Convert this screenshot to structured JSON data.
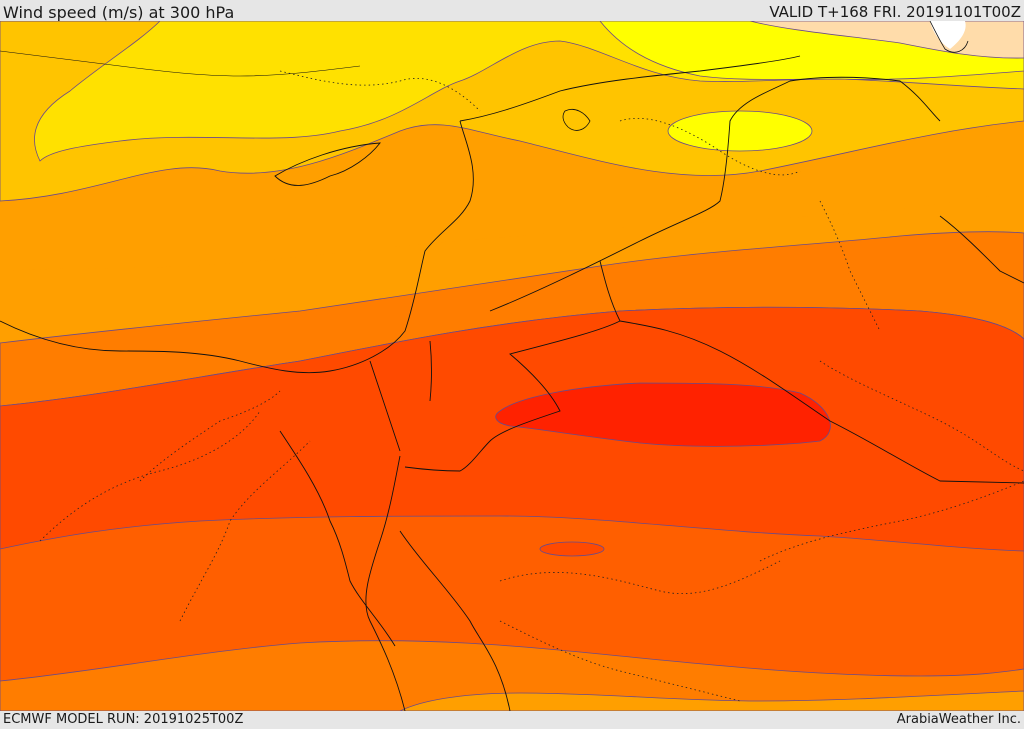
{
  "header": {
    "title": "Wind speed (m/s) at 300 hPa",
    "valid": "VALID T+168 FRI. 20191101T00Z"
  },
  "footer": {
    "model_run": "ECMWF MODEL RUN: 20191025T00Z",
    "credit": "ArabiaWeather Inc."
  },
  "map": {
    "variable": "wind speed",
    "level_hpa": 300,
    "colors": {
      "band_1": "#ffff00",
      "band_2": "#ffe100",
      "band_3": "#ffc400",
      "band_4": "#ff9f00",
      "band_5": "#ff7d00",
      "band_6": "#ff5f00",
      "band_7": "#ff4a00",
      "band_8": "#ff3900",
      "band_9": "#ff2200",
      "band_low": "#ffdcaa",
      "contour": "#6a4a8a",
      "border": "#111111"
    }
  }
}
